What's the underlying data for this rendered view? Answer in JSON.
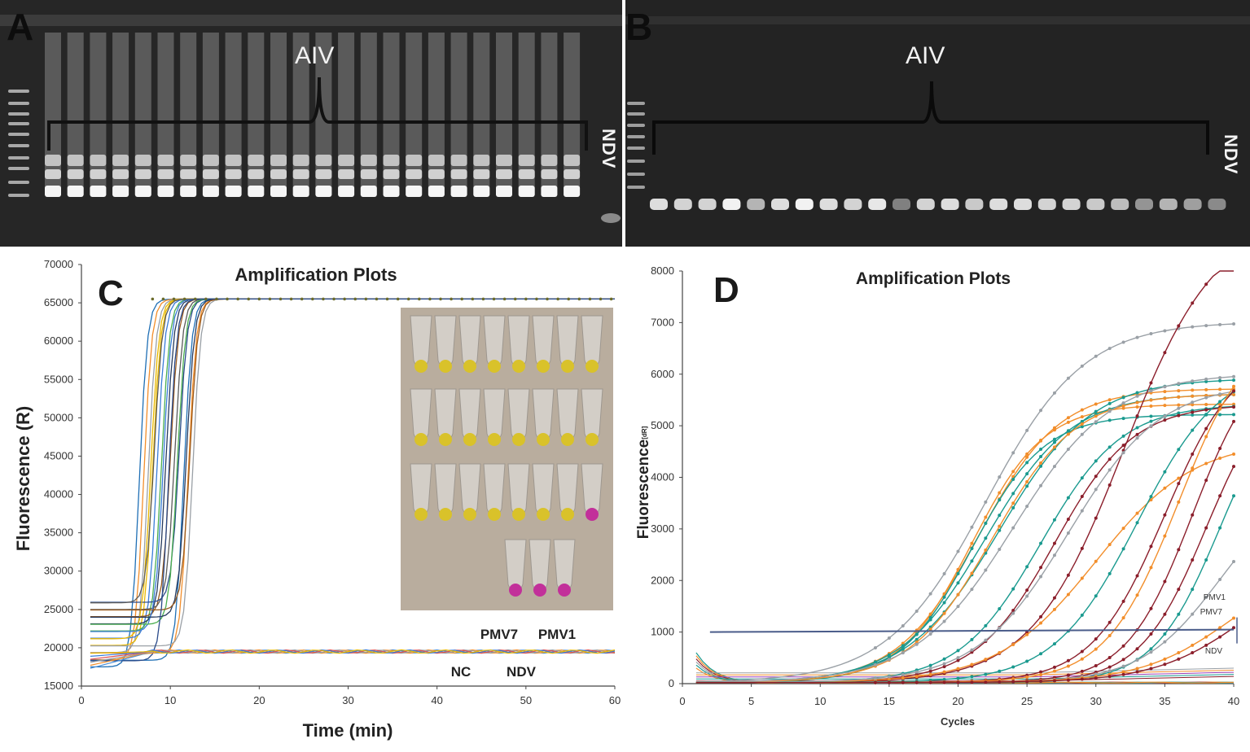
{
  "panel_a": {
    "letter": "A",
    "bracket_label": "AIV",
    "ndv_label": "NDV",
    "aiv_lane_count": 24,
    "ndv_lane_count": 1
  },
  "panel_b": {
    "letter": "B",
    "bracket_label": "AIV",
    "ndv_label": "NDV",
    "aiv_lane_count": 24,
    "ndv_lane_count": 1
  },
  "chart_data": [
    {
      "panel": "C",
      "type": "line",
      "title": "Amplification Plots",
      "xlabel": "Time (min)",
      "ylabel": "Fluorescence (R)",
      "xlim": [
        0,
        60
      ],
      "ylim": [
        15000,
        70000
      ],
      "x_ticks": [
        "0",
        "10",
        "20",
        "30",
        "40",
        "50",
        "60"
      ],
      "y_ticks": [
        "15000",
        "20000",
        "25000",
        "30000",
        "35000",
        "40000",
        "45000",
        "50000",
        "55000",
        "60000",
        "65000",
        "70000"
      ],
      "positive_plateau": 65500,
      "negative_baseline": 19500,
      "positive_rise_times_min": [
        6.5,
        7,
        7.5,
        8,
        8.5,
        9,
        9.5,
        10,
        10.5,
        11,
        11.5,
        12,
        12.5,
        7.8,
        9.2,
        10.8,
        11.8,
        12.2,
        8.2,
        9.8
      ],
      "series_colors": [
        "#1f6fb5",
        "#f28e2b",
        "#9aa0a6",
        "#e8b800",
        "#3b7dd8",
        "#4caf50",
        "#263a5e",
        "#9a5b1f",
        "#5b5b5b",
        "#2a4a8a"
      ],
      "annotations": [
        "PMV7",
        "PMV1",
        "NC",
        "NDV"
      ],
      "inset": {
        "rows": [
          {
            "tubes": 8,
            "colors": [
              "yellow",
              "yellow",
              "yellow",
              "yellow",
              "yellow",
              "yellow",
              "yellow",
              "yellow"
            ]
          },
          {
            "tubes": 8,
            "colors": [
              "yellow",
              "yellow",
              "yellow",
              "yellow",
              "yellow",
              "yellow",
              "yellow",
              "yellow"
            ]
          },
          {
            "tubes": 8,
            "colors": [
              "yellow",
              "yellow",
              "yellow",
              "yellow",
              "yellow",
              "yellow",
              "yellow",
              "pink"
            ]
          },
          {
            "tubes": 3,
            "colors": [
              "pink",
              "pink",
              "pink"
            ]
          }
        ]
      }
    },
    {
      "panel": "D",
      "type": "line",
      "title": "Amplification Plots",
      "xlabel": "Cycles",
      "ylabel": "Fluorescence",
      "ylabel_unit": "[dR]",
      "xlim": [
        0,
        40
      ],
      "ylim": [
        0,
        8000
      ],
      "x_ticks": [
        "0",
        "5",
        "10",
        "15",
        "20",
        "25",
        "30",
        "35",
        "40"
      ],
      "y_ticks": [
        "0",
        "1000",
        "2000",
        "3000",
        "4000",
        "5000",
        "6000",
        "7000",
        "8000"
      ],
      "threshold": 1000,
      "annotations": [
        "PMV1",
        "PMV7",
        "NDV"
      ],
      "series_colors": [
        "#1a9a8f",
        "#f28e2b",
        "#8b1e2b",
        "#9aa0a6"
      ],
      "curves": [
        {
          "color": "#9aa0a6",
          "mid": 22,
          "max": 7000,
          "k": 0.28
        },
        {
          "color": "#f28e2b",
          "mid": 21,
          "max": 5400,
          "k": 0.38
        },
        {
          "color": "#f28e2b",
          "mid": 21.5,
          "max": 5700,
          "k": 0.34
        },
        {
          "color": "#1a9a8f",
          "mid": 21,
          "max": 5200,
          "k": 0.38
        },
        {
          "color": "#1a9a8f",
          "mid": 22,
          "max": 5600,
          "k": 0.32
        },
        {
          "color": "#1a9a8f",
          "mid": 23,
          "max": 5900,
          "k": 0.3
        },
        {
          "color": "#f28e2b",
          "mid": 22.5,
          "max": 5600,
          "k": 0.33
        },
        {
          "color": "#9aa0a6",
          "mid": 24,
          "max": 6000,
          "k": 0.28
        },
        {
          "color": "#1a9a8f",
          "mid": 26,
          "max": 5400,
          "k": 0.34
        },
        {
          "color": "#8b1e2b",
          "mid": 27,
          "max": 5400,
          "k": 0.35
        },
        {
          "color": "#8b1e2b",
          "mid": 32,
          "max": 9000,
          "k": 0.3
        },
        {
          "color": "#f28e2b",
          "mid": 30,
          "max": 4700,
          "k": 0.28
        },
        {
          "color": "#9aa0a6",
          "mid": 28,
          "max": 5800,
          "k": 0.3
        },
        {
          "color": "#1a9a8f",
          "mid": 33,
          "max": 6200,
          "k": 0.33
        },
        {
          "color": "#8b1e2b",
          "mid": 35,
          "max": 6500,
          "k": 0.38
        },
        {
          "color": "#f28e2b",
          "mid": 36,
          "max": 7000,
          "k": 0.38
        },
        {
          "color": "#8b1e2b",
          "mid": 37,
          "max": 6500,
          "k": 0.42
        },
        {
          "color": "#8b1e2b",
          "mid": 38,
          "max": 6000,
          "k": 0.42
        },
        {
          "color": "#1a9a8f",
          "mid": 39,
          "max": 6000,
          "k": 0.42
        },
        {
          "color": "#9aa0a6",
          "mid": 39,
          "max": 4000,
          "k": 0.35
        },
        {
          "color": "#f28e2b",
          "mid": 40,
          "max": 2500,
          "k": 0.3
        },
        {
          "color": "#8b1e2b",
          "mid": 41,
          "max": 2500,
          "k": 0.3
        }
      ]
    }
  ]
}
